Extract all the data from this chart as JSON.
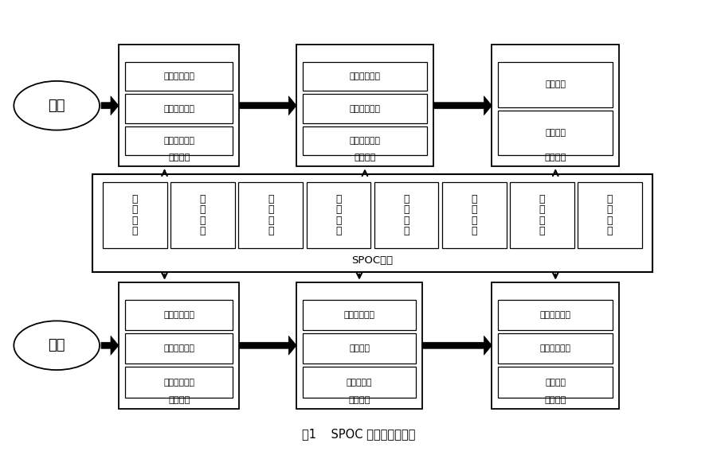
{
  "title": "图1    SPOC 课程实施流程图",
  "background_color": "#ffffff",
  "teacher_label": "教师",
  "student_label": "学生",
  "spoc_label": "SPOC平台",
  "teacher_boxes": [
    {
      "label": "线上学习",
      "items": [
        "设置任务清单",
        "设置学习资源",
        "监督学习过程"
      ]
    },
    {
      "label": "课堂学习",
      "items": [
        "深化知识内容",
        "共性问题讨论",
        "开展小组项目"
      ]
    },
    {
      "label": "课后学习",
      "items": [
        "师生交流",
        "教学反思"
      ]
    }
  ],
  "student_boxes": [
    {
      "label": "线上学习",
      "items": [
        "接受任务清单",
        "学习线上资料",
        "完成线上作业"
      ]
    },
    {
      "label": "课堂学习",
      "items": [
        "小组项目展示",
        "小组讨论",
        "探究式学习"
      ]
    },
    {
      "label": "课后学习",
      "items": [
        "改进小组项目",
        "完成课后作业",
        "复习巩固"
      ]
    }
  ],
  "spoc_modules": [
    "视频模块",
    "资料模块",
    "通知模块",
    "作业模块",
    "考试模块",
    "讨论模块",
    "统计模块",
    "管理模块"
  ]
}
